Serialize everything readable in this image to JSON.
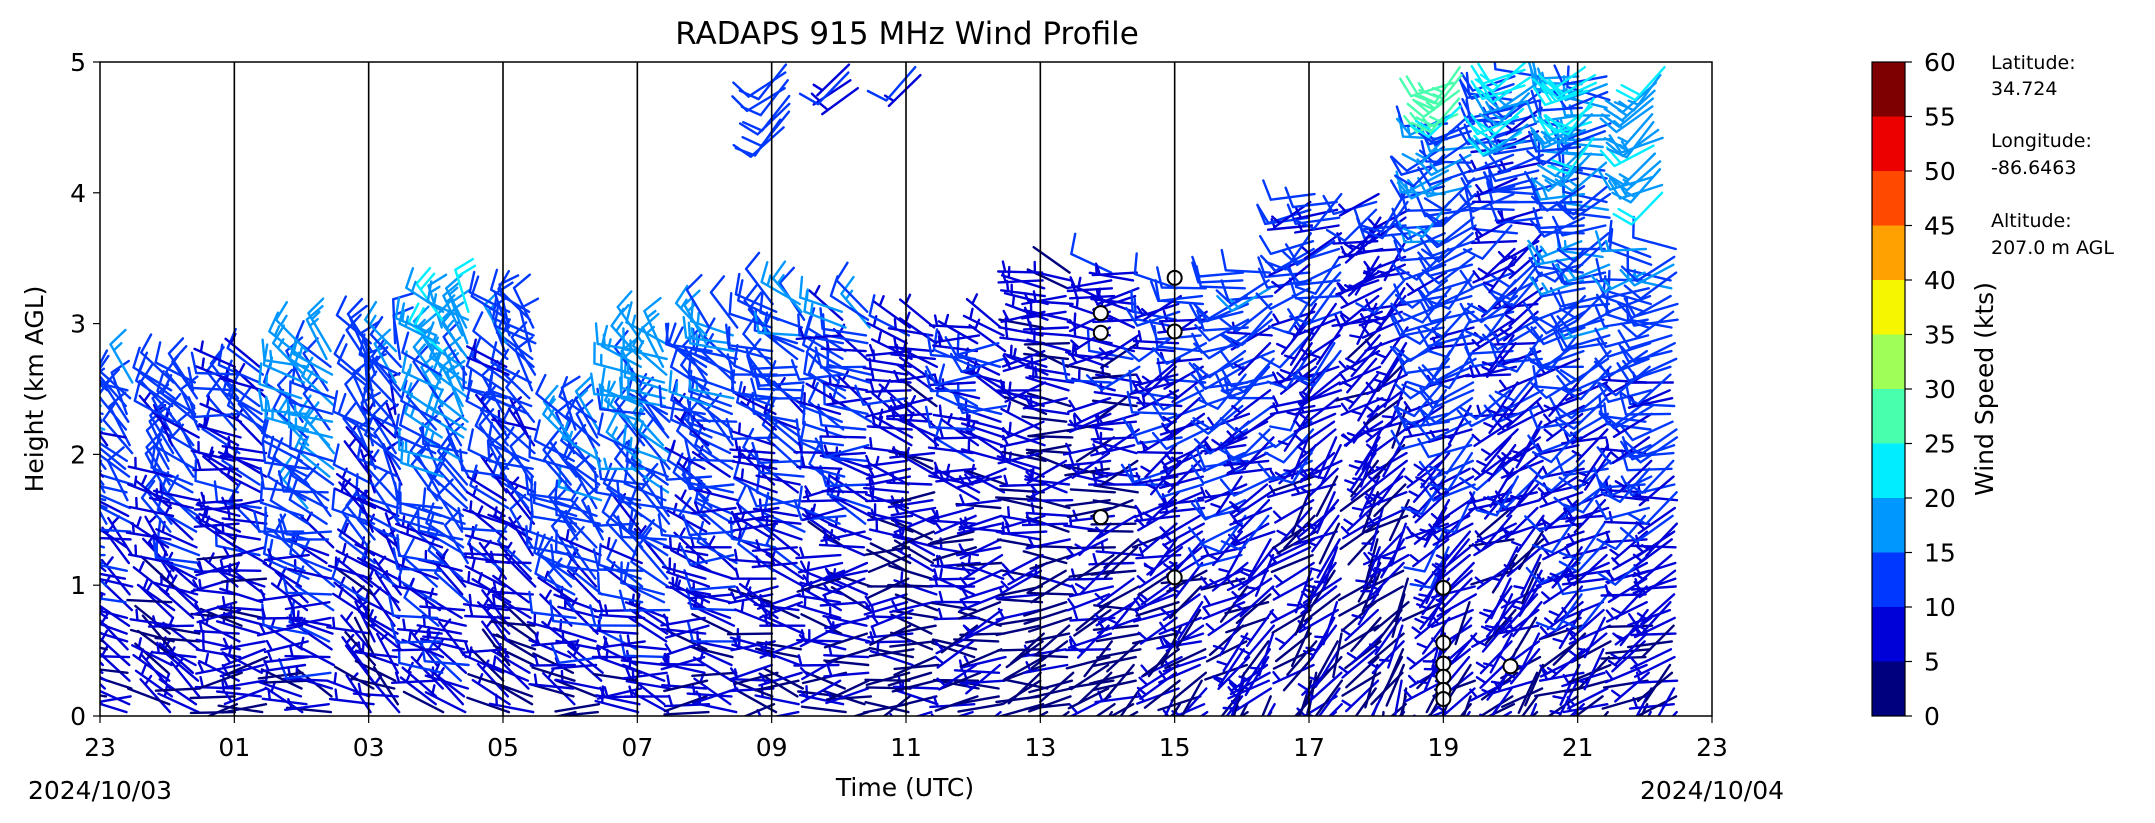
{
  "chart_data": {
    "type": "wind-barb",
    "title": "RADAPS 915 MHz Wind Profile",
    "xlabel": "Time (UTC)",
    "ylabel": "Height (km AGL)",
    "x_tick_labels": [
      "23",
      "01",
      "03",
      "05",
      "07",
      "09",
      "11",
      "13",
      "15",
      "17",
      "19",
      "21",
      "23"
    ],
    "x_tick_hours": [
      0,
      2,
      4,
      6,
      8,
      10,
      12,
      14,
      16,
      18,
      20,
      22,
      24
    ],
    "date_start": "2024/10/03",
    "date_end": "2024/10/04",
    "xlim_hours": [
      0,
      24
    ],
    "ylim": [
      0,
      5
    ],
    "y_ticks": [
      0,
      1,
      2,
      3,
      4,
      5
    ],
    "colorbar": {
      "label": "Wind Speed (kts)",
      "ticks": [
        0,
        5,
        10,
        15,
        20,
        25,
        30,
        35,
        40,
        45,
        50,
        55,
        60
      ],
      "colors": [
        "#00007f",
        "#0000d8",
        "#0038ff",
        "#0098ff",
        "#00eeff",
        "#48ffad",
        "#a0ff56",
        "#f6f600",
        "#ffa100",
        "#ff4800",
        "#ec0000",
        "#7f0000"
      ]
    },
    "profiles": [
      {
        "hour": 0,
        "top": 2.6,
        "wdir": 315,
        "wspd": 11
      },
      {
        "hour": 1,
        "top": 2.6,
        "wdir": 320,
        "wspd": 10
      },
      {
        "hour": 2,
        "top": 2.7,
        "wdir": 300,
        "wspd": 9
      },
      {
        "hour": 3,
        "top": 2.8,
        "wdir": 310,
        "wspd": 14
      },
      {
        "hour": 4,
        "top": 2.9,
        "wdir": 330,
        "wspd": 11
      },
      {
        "hour": 5,
        "top": 3.1,
        "wdir": 320,
        "wspd": 15
      },
      {
        "hour": 6,
        "top": 3.1,
        "wdir": 320,
        "wspd": 11
      },
      {
        "hour": 7,
        "top": 2.3,
        "wdir": 315,
        "wspd": 13
      },
      {
        "hour": 8,
        "top": 2.9,
        "wdir": 310,
        "wspd": 14
      },
      {
        "hour": 9,
        "top": 3.0,
        "wdir": 305,
        "wspd": 12
      },
      {
        "hour": 10,
        "top": 3.2,
        "wdir": 300,
        "wspd": 11
      },
      {
        "hour": 11,
        "top": 3.1,
        "wdir": 295,
        "wspd": 10
      },
      {
        "hour": 12,
        "top": 3.0,
        "wdir": 290,
        "wspd": 7
      },
      {
        "hour": 13,
        "top": 3.0,
        "wdir": 285,
        "wspd": 8
      },
      {
        "hour": 14,
        "top": 3.4,
        "wdir": 280,
        "wspd": 6
      },
      {
        "hour": 15,
        "top": 3.4,
        "wdir": 270,
        "wspd": 7
      },
      {
        "hour": 16,
        "top": 3.3,
        "wdir": 260,
        "wspd": 9
      },
      {
        "hour": 17,
        "top": 3.4,
        "wdir": 250,
        "wspd": 10
      },
      {
        "hour": 18,
        "top": 4.0,
        "wdir": 245,
        "wspd": 9
      },
      {
        "hour": 19,
        "top": 4.0,
        "wdir": 240,
        "wspd": 7
      },
      {
        "hour": 20,
        "top": 4.6,
        "wdir": 250,
        "wspd": 12
      },
      {
        "hour": 21,
        "top": 4.9,
        "wdir": 255,
        "wspd": 10
      },
      {
        "hour": 22,
        "top": 4.9,
        "wdir": 260,
        "wspd": 13
      },
      {
        "hour": 23,
        "top": 3.6,
        "wdir": 265,
        "wspd": 11
      }
    ],
    "upper_fragments": [
      {
        "hour": 10,
        "bottom": 4.5,
        "top": 5.0,
        "wspd": 13
      },
      {
        "hour": 11,
        "bottom": 4.8,
        "top": 5.0,
        "wspd": 12
      },
      {
        "hour": 12,
        "bottom": 4.9,
        "top": 5.0,
        "wspd": 11
      },
      {
        "hour": 20,
        "bottom": 4.6,
        "top": 5.0,
        "wspd": 27
      },
      {
        "hour": 21,
        "bottom": 4.4,
        "top": 5.0,
        "wspd": 22
      },
      {
        "hour": 22,
        "bottom": 4.3,
        "top": 5.0,
        "wspd": 21
      },
      {
        "hour": 23,
        "bottom": 4.0,
        "top": 5.0,
        "wspd": 18
      }
    ],
    "calm_markers": [
      {
        "hour": 14.9,
        "height": 3.08
      },
      {
        "hour": 14.9,
        "height": 2.93
      },
      {
        "hour": 16.0,
        "height": 3.35
      },
      {
        "hour": 16.0,
        "height": 2.94
      },
      {
        "hour": 14.9,
        "height": 1.52
      },
      {
        "hour": 16.0,
        "height": 1.06
      },
      {
        "hour": 20.0,
        "height": 0.98
      },
      {
        "hour": 20.0,
        "height": 0.56
      },
      {
        "hour": 20.0,
        "height": 0.4
      },
      {
        "hour": 20.0,
        "height": 0.3
      },
      {
        "hour": 20.0,
        "height": 0.2
      },
      {
        "hour": 20.0,
        "height": 0.13
      },
      {
        "hour": 21.0,
        "height": 0.38
      }
    ]
  },
  "site": {
    "latitude_label": "Latitude:",
    "latitude_value": "34.724",
    "longitude_label": "Longitude:",
    "longitude_value": "-86.6463",
    "altitude_label": "Altitude:",
    "altitude_value": "207.0 m AGL"
  }
}
